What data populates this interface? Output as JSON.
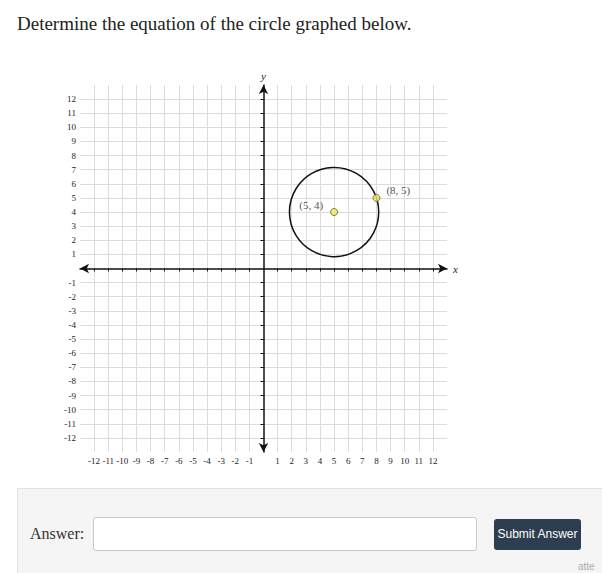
{
  "question": "Determine the equation of the circle graphed below.",
  "chart_data": {
    "type": "circle",
    "x_label": "x",
    "y_label": "y",
    "xlim": [
      -13,
      13
    ],
    "ylim": [
      -13,
      13
    ],
    "xticks": [
      -12,
      -11,
      -10,
      -9,
      -8,
      -7,
      -6,
      -5,
      -4,
      -3,
      -2,
      -1,
      1,
      2,
      3,
      4,
      5,
      6,
      7,
      8,
      9,
      10,
      11,
      12
    ],
    "yticks": [
      -12,
      -11,
      -10,
      -9,
      -8,
      -7,
      -6,
      -5,
      -4,
      -3,
      -2,
      -1,
      1,
      2,
      3,
      4,
      5,
      6,
      7,
      8,
      9,
      10,
      11,
      12
    ],
    "grid": true,
    "circle": {
      "center": [
        5,
        4
      ],
      "through": [
        8,
        5
      ],
      "color": "#111111"
    },
    "points": {
      "x": [
        5,
        8
      ],
      "y": [
        4,
        5
      ],
      "labels": [
        "(5, 4)",
        "(8, 5)"
      ],
      "color": "#f7e84a"
    }
  },
  "answer": {
    "label": "Answer:",
    "button": "Submit Answer"
  },
  "footer": "atte"
}
